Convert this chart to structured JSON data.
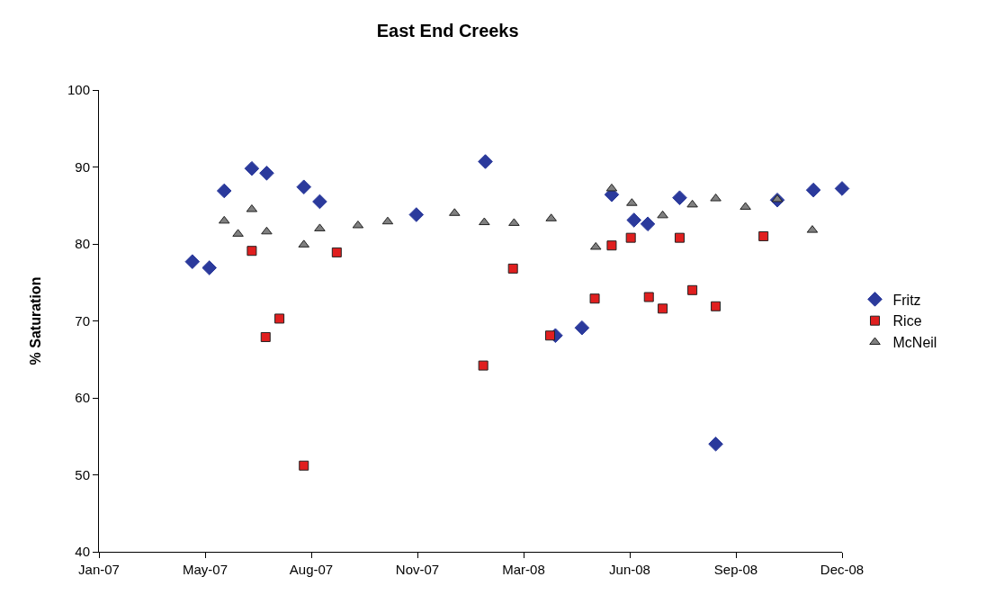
{
  "chart_data": {
    "type": "scatter",
    "title": "East End Creeks",
    "ylabel": "% Saturation",
    "xlim": [
      "2007-01-31",
      "2008-12-31"
    ],
    "xticks": [
      {
        "value": "2007-01-31",
        "label": "Jan-07"
      },
      {
        "value": "2007-05-11",
        "label": "May-07"
      },
      {
        "value": "2007-08-19",
        "label": "Aug-07"
      },
      {
        "value": "2007-11-27",
        "label": "Nov-07"
      },
      {
        "value": "2008-03-06",
        "label": "Mar-08"
      },
      {
        "value": "2008-06-14",
        "label": "Jun-08"
      },
      {
        "value": "2008-09-22",
        "label": "Sep-08"
      },
      {
        "value": "2008-12-31",
        "label": "Dec-08"
      }
    ],
    "ylim": [
      40,
      100
    ],
    "yticks": [
      40,
      50,
      60,
      70,
      80,
      90,
      100
    ],
    "grid": false,
    "legend": "right",
    "series": [
      {
        "name": "Fritz",
        "color": "#2b3a9c",
        "marker": "diamond",
        "x": [
          "2007-04-29",
          "2007-05-15",
          "2007-05-29",
          "2007-06-24",
          "2007-07-08",
          "2007-08-12",
          "2007-08-27",
          "2007-11-26",
          "2008-01-30",
          "2008-04-05",
          "2008-04-30",
          "2008-05-28",
          "2008-06-18",
          "2008-07-01",
          "2008-07-31",
          "2008-09-03",
          "2008-10-31",
          "2008-12-04",
          "2008-12-31"
        ],
        "values": [
          77.7,
          76.9,
          86.9,
          89.8,
          89.2,
          87.4,
          85.5,
          83.8,
          90.7,
          68.1,
          69.1,
          86.4,
          83.1,
          82.6,
          86.0,
          54.0,
          85.7,
          87.0,
          87.2
        ]
      },
      {
        "name": "Rice",
        "color": "#e01f1f",
        "marker": "square",
        "x": [
          "2007-06-24",
          "2007-07-07",
          "2007-07-20",
          "2007-08-12",
          "2007-09-12",
          "2008-01-28",
          "2008-02-25",
          "2008-03-31",
          "2008-05-12",
          "2008-05-28",
          "2008-06-15",
          "2008-07-02",
          "2008-07-15",
          "2008-07-31",
          "2008-08-12",
          "2008-09-03",
          "2008-10-18"
        ],
        "values": [
          79.1,
          67.9,
          70.3,
          51.2,
          78.9,
          64.2,
          76.8,
          68.1,
          72.9,
          79.8,
          80.8,
          73.1,
          71.6,
          80.8,
          74.0,
          71.9,
          81.0
        ]
      },
      {
        "name": "McNeil",
        "color": "#808080",
        "marker": "triangle",
        "x": [
          "2007-05-29",
          "2007-06-11",
          "2007-06-24",
          "2007-07-08",
          "2007-08-12",
          "2007-08-27",
          "2007-10-02",
          "2007-10-30",
          "2008-01-01",
          "2008-01-29",
          "2008-02-26",
          "2008-04-01",
          "2008-05-13",
          "2008-05-28",
          "2008-06-16",
          "2008-07-15",
          "2008-08-12",
          "2008-09-03",
          "2008-10-01",
          "2008-10-31",
          "2008-12-03"
        ],
        "values": [
          83.0,
          81.3,
          84.5,
          81.6,
          79.9,
          82.0,
          82.4,
          82.9,
          84.0,
          82.8,
          82.7,
          83.3,
          79.6,
          87.2,
          85.3,
          83.7,
          85.1,
          85.9,
          84.8,
          85.8,
          81.8
        ]
      }
    ]
  }
}
